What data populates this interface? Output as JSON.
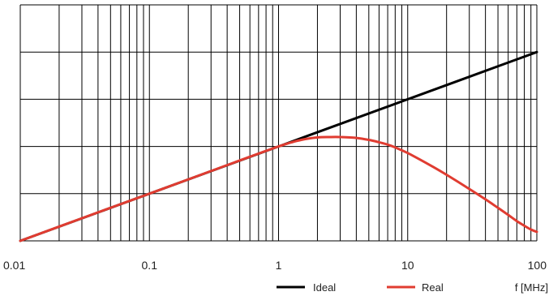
{
  "chart_data": {
    "type": "line",
    "title": "",
    "ylabel": "",
    "xlabel": "f [MHz]",
    "x_scale": "log",
    "xlim": [
      0.01,
      100
    ],
    "ylim": [
      0,
      5
    ],
    "grid": true,
    "legend_position": "bottom",
    "x_tick_labels": [
      {
        "value": 0.01,
        "label": "0.01"
      },
      {
        "value": 0.1,
        "label": "0.1"
      },
      {
        "value": 1,
        "label": "1"
      },
      {
        "value": 10,
        "label": "10"
      },
      {
        "value": 100,
        "label": "100"
      }
    ],
    "series": [
      {
        "name": "Ideal",
        "color": "#000000",
        "x": [
          0.01,
          0.1,
          1,
          10,
          100
        ],
        "y": [
          0,
          1,
          2,
          3,
          4
        ]
      },
      {
        "name": "Real",
        "color": "#e03c31",
        "x": [
          0.01,
          0.03,
          0.1,
          0.3,
          1,
          1.5,
          2,
          2.5,
          3,
          4,
          5,
          6,
          7,
          8,
          10,
          15,
          20,
          30,
          40,
          50,
          60,
          70,
          80,
          90,
          100
        ],
        "y": [
          0,
          0.48,
          1,
          1.48,
          2,
          2.14,
          2.19,
          2.2,
          2.2,
          2.18,
          2.14,
          2.09,
          2.04,
          1.98,
          1.86,
          1.6,
          1.4,
          1.1,
          0.88,
          0.7,
          0.55,
          0.42,
          0.32,
          0.24,
          0.19
        ]
      }
    ]
  }
}
